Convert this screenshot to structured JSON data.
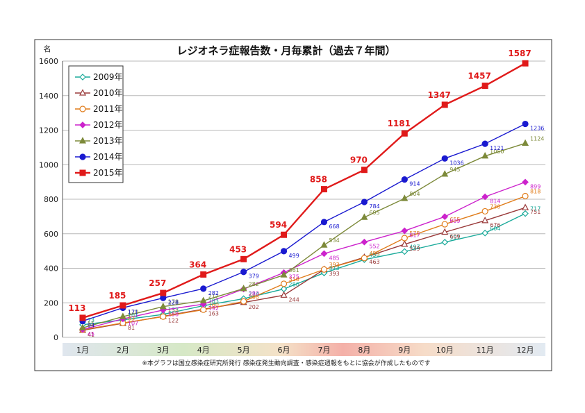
{
  "chart_data": {
    "type": "line",
    "title": "レジオネラ症報告数・月毎累計（過去７年間）",
    "ylabel": "名",
    "ylim": [
      0,
      1600
    ],
    "yticks": [
      0,
      200,
      400,
      600,
      800,
      1000,
      1200,
      1400,
      1600
    ],
    "categories": [
      "1月",
      "2月",
      "3月",
      "4月",
      "5月",
      "6月",
      "7月",
      "8月",
      "9月",
      "10月",
      "11月",
      "12月"
    ],
    "grid": true,
    "legend_position": "top-left",
    "note": "※本グラフは国立感染症研究所発行 感染症発生動向調査・感染症週報をもとに協会が作成したものです",
    "series": [
      {
        "name": "2009年",
        "color": "#1aaa9a",
        "marker": "diamond-open",
        "values": [
          73,
          101,
          133,
          183,
          224,
          280,
          373,
          450,
          497,
          551,
          604,
          717
        ],
        "labels": [
          "73",
          "101",
          "133",
          "183",
          "224",
          "280",
          "373",
          "450",
          "497",
          "551",
          "604",
          "717"
        ]
      },
      {
        "name": "2010年",
        "color": "#9a3a3a",
        "marker": "triangle-open",
        "values": [
          41,
          81,
          122,
          163,
          202,
          244,
          393,
          463,
          539,
          609,
          676,
          751
        ],
        "labels": [
          "41",
          "81",
          "122",
          "163",
          "202",
          "244",
          "393",
          "463",
          "539",
          "609",
          "676",
          "751"
        ]
      },
      {
        "name": "2011年",
        "color": "#e07c1a",
        "marker": "circle-open",
        "values": [
          44,
          83,
          120,
          160,
          208,
          310,
          393,
          459,
          575,
          655,
          730,
          818
        ],
        "labels": [
          "44",
          "83",
          "120",
          "160",
          "208",
          "310",
          "393",
          "459",
          "575",
          "655",
          "730",
          "818"
        ]
      },
      {
        "name": "2012年",
        "color": "#cc22cc",
        "marker": "diamond",
        "values": [
          45,
          107,
          158,
          192,
          280,
          375,
          485,
          552,
          617,
          699,
          814,
          899
        ],
        "labels": [
          "45",
          "107",
          "158",
          "192",
          "280",
          "375",
          "485",
          "552",
          "617",
          "699",
          "814",
          "899"
        ]
      },
      {
        "name": "2013年",
        "color": "#7d8a3a",
        "marker": "triangle",
        "values": [
          55,
          120,
          178,
          212,
          282,
          361,
          534,
          695,
          804,
          945,
          1050,
          1124
        ],
        "labels": [
          "55",
          "120",
          "178",
          "212",
          "282",
          "361",
          "534",
          "695",
          "804",
          "945",
          "1050",
          "1124"
        ]
      },
      {
        "name": "2014年",
        "color": "#1a1ad0",
        "marker": "circle",
        "values": [
          94,
          171,
          228,
          282,
          379,
          499,
          668,
          784,
          914,
          1036,
          1121,
          1236
        ],
        "labels": [
          "94",
          "171",
          "228",
          "282",
          "379",
          "499",
          "668",
          "784",
          "914",
          "1036",
          "1121",
          "1236"
        ]
      },
      {
        "name": "2015年",
        "color": "#e01a1a",
        "marker": "square",
        "values": [
          113,
          185,
          257,
          364,
          453,
          594,
          858,
          970,
          1181,
          1347,
          1457,
          1587
        ],
        "labels": [
          "113",
          "185",
          "257",
          "364",
          "453",
          "594",
          "858",
          "970",
          "1181",
          "1347",
          "1457",
          "1587"
        ]
      }
    ]
  }
}
